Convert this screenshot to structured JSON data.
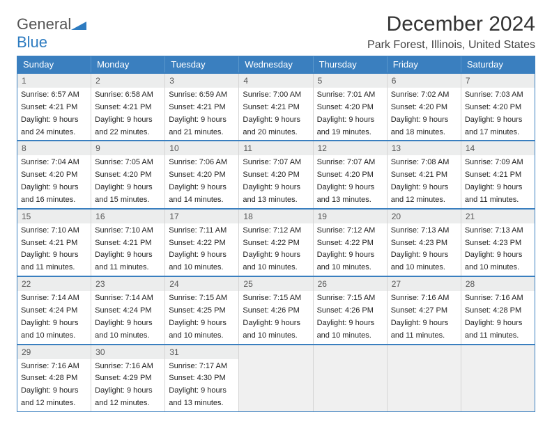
{
  "logo": {
    "word1": "General",
    "word2": "Blue"
  },
  "title": "December 2024",
  "location": "Park Forest, Illinois, United States",
  "colors": {
    "brand_blue": "#3a7fbf",
    "header_row_bg": "#3a7fbf",
    "daynum_bg": "#eceded",
    "week_divider": "#3a7fbf",
    "cell_border": "#d5d5d5",
    "empty_bg": "#f0f0f0"
  },
  "daysOfWeek": [
    "Sunday",
    "Monday",
    "Tuesday",
    "Wednesday",
    "Thursday",
    "Friday",
    "Saturday"
  ],
  "weeks": [
    [
      {
        "n": "1",
        "sunrise": "Sunrise: 6:57 AM",
        "sunset": "Sunset: 4:21 PM",
        "day1": "Daylight: 9 hours",
        "day2": "and 24 minutes."
      },
      {
        "n": "2",
        "sunrise": "Sunrise: 6:58 AM",
        "sunset": "Sunset: 4:21 PM",
        "day1": "Daylight: 9 hours",
        "day2": "and 22 minutes."
      },
      {
        "n": "3",
        "sunrise": "Sunrise: 6:59 AM",
        "sunset": "Sunset: 4:21 PM",
        "day1": "Daylight: 9 hours",
        "day2": "and 21 minutes."
      },
      {
        "n": "4",
        "sunrise": "Sunrise: 7:00 AM",
        "sunset": "Sunset: 4:21 PM",
        "day1": "Daylight: 9 hours",
        "day2": "and 20 minutes."
      },
      {
        "n": "5",
        "sunrise": "Sunrise: 7:01 AM",
        "sunset": "Sunset: 4:20 PM",
        "day1": "Daylight: 9 hours",
        "day2": "and 19 minutes."
      },
      {
        "n": "6",
        "sunrise": "Sunrise: 7:02 AM",
        "sunset": "Sunset: 4:20 PM",
        "day1": "Daylight: 9 hours",
        "day2": "and 18 minutes."
      },
      {
        "n": "7",
        "sunrise": "Sunrise: 7:03 AM",
        "sunset": "Sunset: 4:20 PM",
        "day1": "Daylight: 9 hours",
        "day2": "and 17 minutes."
      }
    ],
    [
      {
        "n": "8",
        "sunrise": "Sunrise: 7:04 AM",
        "sunset": "Sunset: 4:20 PM",
        "day1": "Daylight: 9 hours",
        "day2": "and 16 minutes."
      },
      {
        "n": "9",
        "sunrise": "Sunrise: 7:05 AM",
        "sunset": "Sunset: 4:20 PM",
        "day1": "Daylight: 9 hours",
        "day2": "and 15 minutes."
      },
      {
        "n": "10",
        "sunrise": "Sunrise: 7:06 AM",
        "sunset": "Sunset: 4:20 PM",
        "day1": "Daylight: 9 hours",
        "day2": "and 14 minutes."
      },
      {
        "n": "11",
        "sunrise": "Sunrise: 7:07 AM",
        "sunset": "Sunset: 4:20 PM",
        "day1": "Daylight: 9 hours",
        "day2": "and 13 minutes."
      },
      {
        "n": "12",
        "sunrise": "Sunrise: 7:07 AM",
        "sunset": "Sunset: 4:20 PM",
        "day1": "Daylight: 9 hours",
        "day2": "and 13 minutes."
      },
      {
        "n": "13",
        "sunrise": "Sunrise: 7:08 AM",
        "sunset": "Sunset: 4:21 PM",
        "day1": "Daylight: 9 hours",
        "day2": "and 12 minutes."
      },
      {
        "n": "14",
        "sunrise": "Sunrise: 7:09 AM",
        "sunset": "Sunset: 4:21 PM",
        "day1": "Daylight: 9 hours",
        "day2": "and 11 minutes."
      }
    ],
    [
      {
        "n": "15",
        "sunrise": "Sunrise: 7:10 AM",
        "sunset": "Sunset: 4:21 PM",
        "day1": "Daylight: 9 hours",
        "day2": "and 11 minutes."
      },
      {
        "n": "16",
        "sunrise": "Sunrise: 7:10 AM",
        "sunset": "Sunset: 4:21 PM",
        "day1": "Daylight: 9 hours",
        "day2": "and 11 minutes."
      },
      {
        "n": "17",
        "sunrise": "Sunrise: 7:11 AM",
        "sunset": "Sunset: 4:22 PM",
        "day1": "Daylight: 9 hours",
        "day2": "and 10 minutes."
      },
      {
        "n": "18",
        "sunrise": "Sunrise: 7:12 AM",
        "sunset": "Sunset: 4:22 PM",
        "day1": "Daylight: 9 hours",
        "day2": "and 10 minutes."
      },
      {
        "n": "19",
        "sunrise": "Sunrise: 7:12 AM",
        "sunset": "Sunset: 4:22 PM",
        "day1": "Daylight: 9 hours",
        "day2": "and 10 minutes."
      },
      {
        "n": "20",
        "sunrise": "Sunrise: 7:13 AM",
        "sunset": "Sunset: 4:23 PM",
        "day1": "Daylight: 9 hours",
        "day2": "and 10 minutes."
      },
      {
        "n": "21",
        "sunrise": "Sunrise: 7:13 AM",
        "sunset": "Sunset: 4:23 PM",
        "day1": "Daylight: 9 hours",
        "day2": "and 10 minutes."
      }
    ],
    [
      {
        "n": "22",
        "sunrise": "Sunrise: 7:14 AM",
        "sunset": "Sunset: 4:24 PM",
        "day1": "Daylight: 9 hours",
        "day2": "and 10 minutes."
      },
      {
        "n": "23",
        "sunrise": "Sunrise: 7:14 AM",
        "sunset": "Sunset: 4:24 PM",
        "day1": "Daylight: 9 hours",
        "day2": "and 10 minutes."
      },
      {
        "n": "24",
        "sunrise": "Sunrise: 7:15 AM",
        "sunset": "Sunset: 4:25 PM",
        "day1": "Daylight: 9 hours",
        "day2": "and 10 minutes."
      },
      {
        "n": "25",
        "sunrise": "Sunrise: 7:15 AM",
        "sunset": "Sunset: 4:26 PM",
        "day1": "Daylight: 9 hours",
        "day2": "and 10 minutes."
      },
      {
        "n": "26",
        "sunrise": "Sunrise: 7:15 AM",
        "sunset": "Sunset: 4:26 PM",
        "day1": "Daylight: 9 hours",
        "day2": "and 10 minutes."
      },
      {
        "n": "27",
        "sunrise": "Sunrise: 7:16 AM",
        "sunset": "Sunset: 4:27 PM",
        "day1": "Daylight: 9 hours",
        "day2": "and 11 minutes."
      },
      {
        "n": "28",
        "sunrise": "Sunrise: 7:16 AM",
        "sunset": "Sunset: 4:28 PM",
        "day1": "Daylight: 9 hours",
        "day2": "and 11 minutes."
      }
    ],
    [
      {
        "n": "29",
        "sunrise": "Sunrise: 7:16 AM",
        "sunset": "Sunset: 4:28 PM",
        "day1": "Daylight: 9 hours",
        "day2": "and 12 minutes."
      },
      {
        "n": "30",
        "sunrise": "Sunrise: 7:16 AM",
        "sunset": "Sunset: 4:29 PM",
        "day1": "Daylight: 9 hours",
        "day2": "and 12 minutes."
      },
      {
        "n": "31",
        "sunrise": "Sunrise: 7:17 AM",
        "sunset": "Sunset: 4:30 PM",
        "day1": "Daylight: 9 hours",
        "day2": "and 13 minutes."
      },
      null,
      null,
      null,
      null
    ]
  ]
}
